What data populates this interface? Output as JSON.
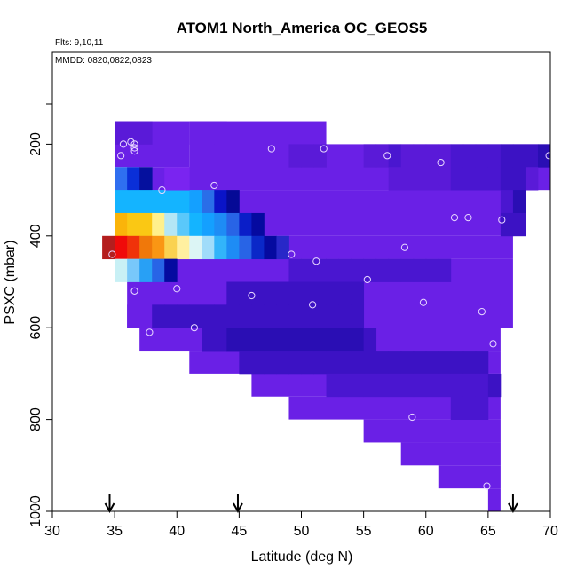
{
  "chart_data": {
    "type": "heatmap",
    "title": "ATOM1 North_America OC_GEOS5",
    "annotations": [
      "Flts: 9,10,11",
      "MMDD: 0820,0822,0823"
    ],
    "xlabel": "Latitude (deg N)",
    "ylabel": "PSXC (mbar)",
    "xlim": [
      30,
      70
    ],
    "ylim": [
      1000,
      0
    ],
    "xticks": [
      "30",
      "35",
      "40",
      "45",
      "50",
      "55",
      "60",
      "65",
      "70"
    ],
    "yticks": [
      "200",
      "400",
      "600",
      "800",
      "1000"
    ],
    "x_step": 1,
    "y_step": 50,
    "fill_cells": [
      {
        "x0": 35,
        "x1": 41,
        "y0": 150,
        "y1": 250
      },
      {
        "x0": 41,
        "x1": 52,
        "y0": 150,
        "y1": 300
      },
      {
        "x0": 52,
        "x1": 70,
        "y0": 200,
        "y1": 300
      },
      {
        "x0": 38,
        "x1": 70,
        "y0": 250,
        "y1": 300
      },
      {
        "x0": 38,
        "x1": 68,
        "y0": 300,
        "y1": 400
      },
      {
        "x0": 47,
        "x1": 67,
        "y0": 400,
        "y1": 450
      },
      {
        "x0": 39,
        "x1": 67,
        "y0": 450,
        "y1": 500
      },
      {
        "x0": 36,
        "x1": 67,
        "y0": 500,
        "y1": 600
      },
      {
        "x0": 36,
        "x1": 66,
        "y0": 550,
        "y1": 600
      },
      {
        "x0": 37,
        "x1": 66,
        "y0": 600,
        "y1": 650
      },
      {
        "x0": 41,
        "x1": 66,
        "y0": 650,
        "y1": 700
      },
      {
        "x0": 46,
        "x1": 66,
        "y0": 700,
        "y1": 750
      },
      {
        "x0": 49,
        "x1": 66,
        "y0": 750,
        "y1": 800
      },
      {
        "x0": 55,
        "x1": 66,
        "y0": 800,
        "y1": 850
      },
      {
        "x0": 58,
        "x1": 66,
        "y0": 850,
        "y1": 900
      },
      {
        "x0": 61,
        "x1": 66,
        "y0": 900,
        "y1": 950
      },
      {
        "x0": 65,
        "x1": 66,
        "y0": 950,
        "y1": 1000
      }
    ],
    "cells": [
      {
        "x": 35,
        "y": 150,
        "c": "#5a1ad8"
      },
      {
        "x": 36,
        "y": 150,
        "c": "#5a1ad8"
      },
      {
        "x": 37,
        "y": 150,
        "c": "#5a1ad8"
      },
      {
        "x": 41,
        "y": 150,
        "c": "#6a20e6"
      },
      {
        "x": 42,
        "y": 150,
        "c": "#6a20e6"
      },
      {
        "x": 43,
        "y": 150,
        "c": "#6a20e6"
      },
      {
        "x": 35,
        "y": 250,
        "c": "#2f6ff0"
      },
      {
        "x": 36,
        "y": 250,
        "c": "#0a2fd8"
      },
      {
        "x": 37,
        "y": 250,
        "c": "#05109e"
      },
      {
        "x": 35,
        "y": 300,
        "c": "#14b4ff"
      },
      {
        "x": 36,
        "y": 300,
        "c": "#14b4ff"
      },
      {
        "x": 37,
        "y": 300,
        "c": "#14b4ff"
      },
      {
        "x": 38,
        "y": 300,
        "c": "#14b4ff"
      },
      {
        "x": 39,
        "y": 300,
        "c": "#14b4ff"
      },
      {
        "x": 40,
        "y": 300,
        "c": "#14b4ff"
      },
      {
        "x": 41,
        "y": 300,
        "c": "#14a0ff"
      },
      {
        "x": 42,
        "y": 300,
        "c": "#2a6ee8"
      },
      {
        "x": 43,
        "y": 300,
        "c": "#0a14c8"
      },
      {
        "x": 44,
        "y": 300,
        "c": "#050a96"
      },
      {
        "x": 35,
        "y": 350,
        "c": "#fab40a"
      },
      {
        "x": 36,
        "y": 350,
        "c": "#fac814"
      },
      {
        "x": 37,
        "y": 350,
        "c": "#fac814"
      },
      {
        "x": 38,
        "y": 350,
        "c": "#fff08c"
      },
      {
        "x": 39,
        "y": 350,
        "c": "#b4e6f5"
      },
      {
        "x": 40,
        "y": 350,
        "c": "#5ac8fa"
      },
      {
        "x": 41,
        "y": 350,
        "c": "#14b4ff"
      },
      {
        "x": 42,
        "y": 350,
        "c": "#14a0ff"
      },
      {
        "x": 43,
        "y": 350,
        "c": "#1e8cf5"
      },
      {
        "x": 44,
        "y": 350,
        "c": "#2864e6"
      },
      {
        "x": 45,
        "y": 350,
        "c": "#0a1ec8"
      },
      {
        "x": 46,
        "y": 350,
        "c": "#050aa0"
      },
      {
        "x": 34,
        "y": 400,
        "c": "#b41e1e"
      },
      {
        "x": 35,
        "y": 400,
        "c": "#f00a0a"
      },
      {
        "x": 36,
        "y": 400,
        "c": "#f0320a"
      },
      {
        "x": 37,
        "y": 400,
        "c": "#f0780a"
      },
      {
        "x": 38,
        "y": 400,
        "c": "#fa9614"
      },
      {
        "x": 39,
        "y": 400,
        "c": "#fad250"
      },
      {
        "x": 40,
        "y": 400,
        "c": "#fff0a0"
      },
      {
        "x": 41,
        "y": 400,
        "c": "#dcf5f5"
      },
      {
        "x": 42,
        "y": 400,
        "c": "#a0dcfa"
      },
      {
        "x": 43,
        "y": 400,
        "c": "#32b4fa"
      },
      {
        "x": 44,
        "y": 400,
        "c": "#1e8cf5"
      },
      {
        "x": 45,
        "y": 400,
        "c": "#2864e6"
      },
      {
        "x": 46,
        "y": 400,
        "c": "#0a28c8"
      },
      {
        "x": 47,
        "y": 400,
        "c": "#050aa0"
      },
      {
        "x": 48,
        "y": 400,
        "c": "#2828c8"
      },
      {
        "x": 35,
        "y": 450,
        "c": "#c8f0f5"
      },
      {
        "x": 36,
        "y": 450,
        "c": "#78c8fa"
      },
      {
        "x": 37,
        "y": 450,
        "c": "#28a0f5"
      },
      {
        "x": 38,
        "y": 450,
        "c": "#2864e6"
      },
      {
        "x": 39,
        "y": 450,
        "c": "#050aa0"
      },
      {
        "x": 39,
        "y": 250,
        "c": "#7a24f0"
      },
      {
        "x": 40,
        "y": 250,
        "c": "#7a24f0"
      },
      {
        "x": 49,
        "y": 200,
        "c": "#5a1ad8"
      },
      {
        "x": 50,
        "y": 200,
        "c": "#5a1ad8"
      },
      {
        "x": 51,
        "y": 200,
        "c": "#5a1ad8"
      },
      {
        "x": 55,
        "y": 200,
        "c": "#5a1ad8"
      },
      {
        "x": 56,
        "y": 200,
        "c": "#5a1ad8"
      },
      {
        "x": 57,
        "y": 200,
        "c": "#4a16d0"
      },
      {
        "x": 58,
        "y": 200,
        "c": "#5a1ad8"
      },
      {
        "x": 59,
        "y": 200,
        "c": "#5a1ad8"
      },
      {
        "x": 60,
        "y": 200,
        "c": "#5a1ad8"
      },
      {
        "x": 61,
        "y": 200,
        "c": "#5a1ad8"
      },
      {
        "x": 62,
        "y": 200,
        "c": "#4a16d0"
      },
      {
        "x": 63,
        "y": 200,
        "c": "#4a16d0"
      },
      {
        "x": 64,
        "y": 200,
        "c": "#4a16d0"
      },
      {
        "x": 65,
        "y": 200,
        "c": "#4a16d0"
      },
      {
        "x": 66,
        "y": 200,
        "c": "#3c12c4"
      },
      {
        "x": 67,
        "y": 200,
        "c": "#3c12c4"
      },
      {
        "x": 68,
        "y": 200,
        "c": "#3c12c4"
      },
      {
        "x": 69,
        "y": 200,
        "c": "#2a0eb4"
      },
      {
        "x": 57,
        "y": 250,
        "c": "#5a1ad8"
      },
      {
        "x": 58,
        "y": 250,
        "c": "#5a1ad8"
      },
      {
        "x": 59,
        "y": 250,
        "c": "#5a1ad8"
      },
      {
        "x": 60,
        "y": 250,
        "c": "#5a1ad8"
      },
      {
        "x": 61,
        "y": 250,
        "c": "#5a1ad8"
      },
      {
        "x": 62,
        "y": 250,
        "c": "#4a16d0"
      },
      {
        "x": 63,
        "y": 250,
        "c": "#4a16d0"
      },
      {
        "x": 64,
        "y": 250,
        "c": "#4a16d0"
      },
      {
        "x": 65,
        "y": 250,
        "c": "#4a16d0"
      },
      {
        "x": 66,
        "y": 250,
        "c": "#3c12c4"
      },
      {
        "x": 67,
        "y": 250,
        "c": "#3c12c4"
      },
      {
        "x": 68,
        "y": 250,
        "c": "#5a1ad8"
      },
      {
        "x": 66,
        "y": 300,
        "c": "#4a16d0"
      },
      {
        "x": 67,
        "y": 300,
        "c": "#2a0eb4"
      },
      {
        "x": 66,
        "y": 350,
        "c": "#3c12c4"
      },
      {
        "x": 67,
        "y": 350,
        "c": "#3c12c4"
      },
      {
        "x": 49,
        "y": 450,
        "c": "#4a16d0"
      },
      {
        "x": 50,
        "y": 450,
        "c": "#4a16d0"
      },
      {
        "x": 51,
        "y": 450,
        "c": "#4a16d0"
      },
      {
        "x": 52,
        "y": 450,
        "c": "#4a16d0"
      },
      {
        "x": 53,
        "y": 450,
        "c": "#4a16d0"
      },
      {
        "x": 54,
        "y": 450,
        "c": "#4a16d0"
      },
      {
        "x": 55,
        "y": 450,
        "c": "#4a16d0"
      },
      {
        "x": 56,
        "y": 450,
        "c": "#4a16d0"
      },
      {
        "x": 57,
        "y": 450,
        "c": "#4a16d0"
      },
      {
        "x": 58,
        "y": 450,
        "c": "#4a16d0"
      },
      {
        "x": 59,
        "y": 450,
        "c": "#4a16d0"
      },
      {
        "x": 60,
        "y": 450,
        "c": "#4a16d0"
      },
      {
        "x": 61,
        "y": 450,
        "c": "#4a16d0"
      },
      {
        "x": 44,
        "y": 500,
        "c": "#3c12c4"
      },
      {
        "x": 45,
        "y": 500,
        "c": "#3c12c4"
      },
      {
        "x": 46,
        "y": 500,
        "c": "#3c12c4"
      },
      {
        "x": 47,
        "y": 500,
        "c": "#3c12c4"
      },
      {
        "x": 48,
        "y": 500,
        "c": "#3c12c4"
      },
      {
        "x": 49,
        "y": 500,
        "c": "#3c12c4"
      },
      {
        "x": 50,
        "y": 500,
        "c": "#3c12c4"
      },
      {
        "x": 51,
        "y": 500,
        "c": "#3c12c4"
      },
      {
        "x": 52,
        "y": 500,
        "c": "#3c12c4"
      },
      {
        "x": 53,
        "y": 500,
        "c": "#3c12c4"
      },
      {
        "x": 54,
        "y": 500,
        "c": "#3c12c4"
      },
      {
        "x": 38,
        "y": 550,
        "c": "#3c12c4"
      },
      {
        "x": 39,
        "y": 550,
        "c": "#3c12c4"
      },
      {
        "x": 40,
        "y": 550,
        "c": "#3c12c4"
      },
      {
        "x": 41,
        "y": 550,
        "c": "#3c12c4"
      },
      {
        "x": 42,
        "y": 550,
        "c": "#3c12c4"
      },
      {
        "x": 43,
        "y": 550,
        "c": "#3c12c4"
      },
      {
        "x": 44,
        "y": 550,
        "c": "#3c12c4"
      },
      {
        "x": 45,
        "y": 550,
        "c": "#3c12c4"
      },
      {
        "x": 46,
        "y": 550,
        "c": "#3c12c4"
      },
      {
        "x": 47,
        "y": 550,
        "c": "#3c12c4"
      },
      {
        "x": 48,
        "y": 550,
        "c": "#3c12c4"
      },
      {
        "x": 49,
        "y": 550,
        "c": "#3c12c4"
      },
      {
        "x": 50,
        "y": 550,
        "c": "#3c12c4"
      },
      {
        "x": 51,
        "y": 550,
        "c": "#3c12c4"
      },
      {
        "x": 52,
        "y": 550,
        "c": "#3c12c4"
      },
      {
        "x": 53,
        "y": 550,
        "c": "#3c12c4"
      },
      {
        "x": 54,
        "y": 550,
        "c": "#3c12c4"
      },
      {
        "x": 42,
        "y": 600,
        "c": "#3c12c4"
      },
      {
        "x": 43,
        "y": 600,
        "c": "#3c12c4"
      },
      {
        "x": 44,
        "y": 600,
        "c": "#2a0eb4"
      },
      {
        "x": 45,
        "y": 600,
        "c": "#2a0eb4"
      },
      {
        "x": 46,
        "y": 600,
        "c": "#2a0eb4"
      },
      {
        "x": 47,
        "y": 600,
        "c": "#2a0eb4"
      },
      {
        "x": 48,
        "y": 600,
        "c": "#2a0eb4"
      },
      {
        "x": 49,
        "y": 600,
        "c": "#2a0eb4"
      },
      {
        "x": 50,
        "y": 600,
        "c": "#2a0eb4"
      },
      {
        "x": 51,
        "y": 600,
        "c": "#2a0eb4"
      },
      {
        "x": 52,
        "y": 600,
        "c": "#2a0eb4"
      },
      {
        "x": 53,
        "y": 600,
        "c": "#2a0eb4"
      },
      {
        "x": 54,
        "y": 600,
        "c": "#2a0eb4"
      },
      {
        "x": 55,
        "y": 600,
        "c": "#3c12c4"
      },
      {
        "x": 45,
        "y": 650,
        "c": "#3c12c4"
      },
      {
        "x": 46,
        "y": 650,
        "c": "#3c12c4"
      },
      {
        "x": 47,
        "y": 650,
        "c": "#3c12c4"
      },
      {
        "x": 48,
        "y": 650,
        "c": "#3c12c4"
      },
      {
        "x": 49,
        "y": 650,
        "c": "#3c12c4"
      },
      {
        "x": 50,
        "y": 650,
        "c": "#3c12c4"
      },
      {
        "x": 51,
        "y": 650,
        "c": "#3c12c4"
      },
      {
        "x": 52,
        "y": 650,
        "c": "#3c12c4"
      },
      {
        "x": 53,
        "y": 650,
        "c": "#3c12c4"
      },
      {
        "x": 54,
        "y": 650,
        "c": "#3c12c4"
      },
      {
        "x": 55,
        "y": 650,
        "c": "#3c12c4"
      },
      {
        "x": 56,
        "y": 650,
        "c": "#3c12c4"
      },
      {
        "x": 57,
        "y": 650,
        "c": "#3c12c4"
      },
      {
        "x": 58,
        "y": 650,
        "c": "#3c12c4"
      },
      {
        "x": 59,
        "y": 650,
        "c": "#3c12c4"
      },
      {
        "x": 60,
        "y": 650,
        "c": "#3c12c4"
      },
      {
        "x": 61,
        "y": 650,
        "c": "#3c12c4"
      },
      {
        "x": 62,
        "y": 650,
        "c": "#3c12c4"
      },
      {
        "x": 63,
        "y": 650,
        "c": "#3c12c4"
      },
      {
        "x": 64,
        "y": 650,
        "c": "#3c12c4"
      },
      {
        "x": 52,
        "y": 700,
        "c": "#4a16d0"
      },
      {
        "x": 53,
        "y": 700,
        "c": "#4a16d0"
      },
      {
        "x": 54,
        "y": 700,
        "c": "#4a16d0"
      },
      {
        "x": 55,
        "y": 700,
        "c": "#4a16d0"
      },
      {
        "x": 56,
        "y": 700,
        "c": "#4a16d0"
      },
      {
        "x": 57,
        "y": 700,
        "c": "#4a16d0"
      },
      {
        "x": 58,
        "y": 700,
        "c": "#4a16d0"
      },
      {
        "x": 59,
        "y": 700,
        "c": "#4a16d0"
      },
      {
        "x": 60,
        "y": 700,
        "c": "#4a16d0"
      },
      {
        "x": 61,
        "y": 700,
        "c": "#4a16d0"
      },
      {
        "x": 62,
        "y": 700,
        "c": "#4a16d0"
      },
      {
        "x": 63,
        "y": 700,
        "c": "#4a16d0"
      },
      {
        "x": 64,
        "y": 700,
        "c": "#4a16d0"
      },
      {
        "x": 65,
        "y": 700,
        "c": "#3c12c4"
      },
      {
        "x": 62,
        "y": 750,
        "c": "#4a16d0"
      },
      {
        "x": 63,
        "y": 750,
        "c": "#4a16d0"
      },
      {
        "x": 64,
        "y": 750,
        "c": "#4a16d0"
      }
    ],
    "points": [
      {
        "x": 34.8,
        "y": 440
      },
      {
        "x": 35.5,
        "y": 225
      },
      {
        "x": 35.7,
        "y": 200
      },
      {
        "x": 36.3,
        "y": 195
      },
      {
        "x": 36.6,
        "y": 200
      },
      {
        "x": 36.6,
        "y": 208
      },
      {
        "x": 36.6,
        "y": 215
      },
      {
        "x": 36.6,
        "y": 520
      },
      {
        "x": 37.8,
        "y": 610
      },
      {
        "x": 38.8,
        "y": 300
      },
      {
        "x": 40.0,
        "y": 515
      },
      {
        "x": 41.4,
        "y": 600
      },
      {
        "x": 43.0,
        "y": 290
      },
      {
        "x": 46.0,
        "y": 530
      },
      {
        "x": 47.6,
        "y": 210
      },
      {
        "x": 49.2,
        "y": 440
      },
      {
        "x": 50.9,
        "y": 550
      },
      {
        "x": 51.2,
        "y": 455
      },
      {
        "x": 51.8,
        "y": 210
      },
      {
        "x": 55.3,
        "y": 495
      },
      {
        "x": 56.9,
        "y": 225
      },
      {
        "x": 58.3,
        "y": 425
      },
      {
        "x": 59.8,
        "y": 545
      },
      {
        "x": 61.2,
        "y": 240
      },
      {
        "x": 62.3,
        "y": 360
      },
      {
        "x": 63.4,
        "y": 360
      },
      {
        "x": 64.5,
        "y": 565
      },
      {
        "x": 65.4,
        "y": 635
      },
      {
        "x": 66.1,
        "y": 365
      },
      {
        "x": 69.9,
        "y": 225
      },
      {
        "x": 64.9,
        "y": 945
      },
      {
        "x": 58.9,
        "y": 795
      }
    ],
    "arrows": [
      34.6,
      44.9,
      67.0
    ]
  },
  "colors": {
    "base_fill": "#6a20e6",
    "point_stroke": "#e8d8ff",
    "axis": "#000000"
  }
}
